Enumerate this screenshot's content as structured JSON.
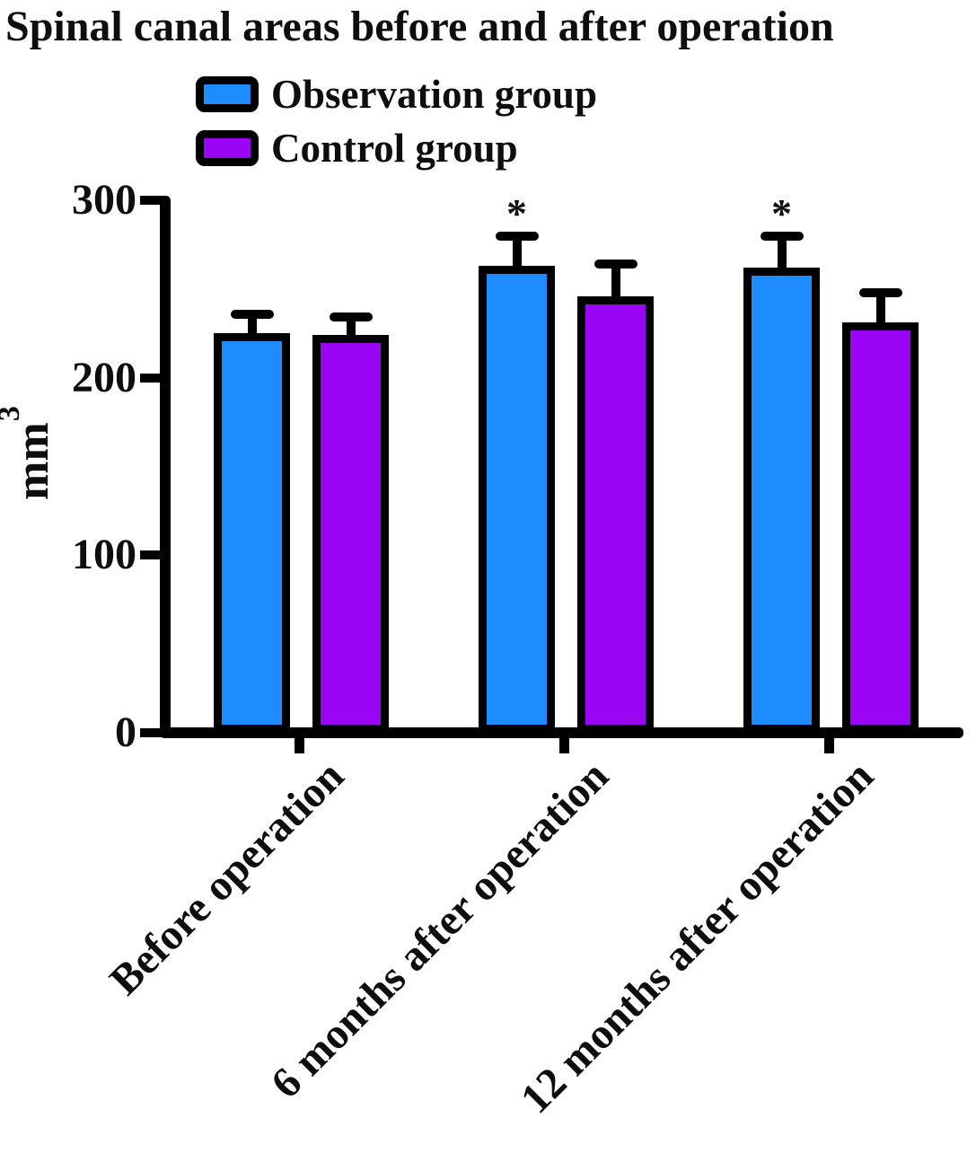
{
  "title": "Spinal canal areas before and after operation",
  "background_color": "#ffffff",
  "text_color": "#0e0e0e",
  "axis_color": "#000000",
  "legend": {
    "position": "top-left",
    "items": [
      {
        "label": "Observation group",
        "color": "#1E8CFF"
      },
      {
        "label": "Control group",
        "color": "#9A06F5"
      }
    ]
  },
  "y_axis": {
    "unit": "mm",
    "unit_sup": "3",
    "tick_labels": [
      "0",
      "100",
      "200",
      "300"
    ]
  },
  "chart_data": {
    "type": "bar",
    "title": "Spinal canal areas before and after operation",
    "xlabel": "",
    "ylabel": "mm³",
    "ylim": [
      0,
      300
    ],
    "yticks": [
      0,
      100,
      200,
      300
    ],
    "grid": false,
    "legend_position": "top-left",
    "error_bars": "upper-only",
    "categories": [
      "Before operation",
      "6 months after operation",
      "12 months after operation"
    ],
    "series": [
      {
        "name": "Observation group",
        "color": "#1E8CFF",
        "values": [
          225,
          263,
          262
        ],
        "errors": [
          11,
          17,
          18
        ],
        "significance": [
          "",
          "*",
          "*"
        ]
      },
      {
        "name": "Control group",
        "color": "#9A06F5",
        "values": [
          224,
          246,
          231
        ],
        "errors": [
          10,
          18,
          17
        ],
        "significance": [
          "",
          "",
          ""
        ]
      }
    ]
  }
}
